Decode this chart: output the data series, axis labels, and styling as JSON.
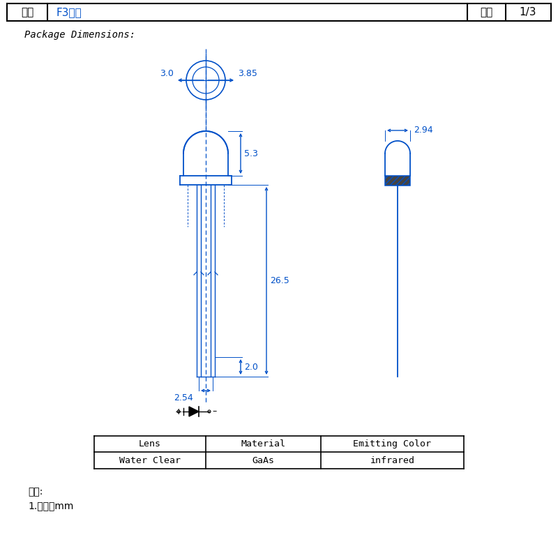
{
  "title_left": "型号",
  "title_mid": "F3发射",
  "title_right_label": "页码",
  "title_right_val": "1/3",
  "package_label": "Package Dimensions:",
  "dim_3_0": "3.0",
  "dim_3_85": "3.85",
  "dim_5_3": "5.3",
  "dim_26_5": "26.5",
  "dim_2_0": "2.0",
  "dim_2_54": "2.54",
  "dim_2_94": "2.94",
  "table_headers": [
    "Lens",
    "Material",
    "Emitting Color"
  ],
  "table_row": [
    "Water Clear",
    "GaAs",
    "infrared"
  ],
  "note_line1": "备注:",
  "note_line2": "1.单位：mm",
  "blue": "#0050C8",
  "black": "#000000"
}
